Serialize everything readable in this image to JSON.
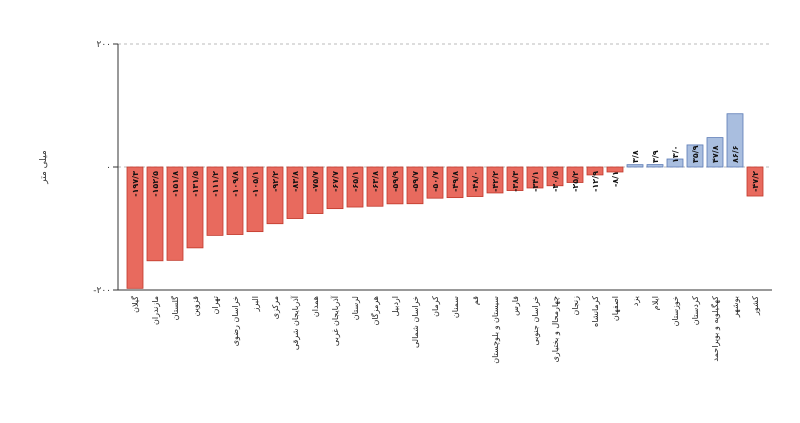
{
  "chart_data": {
    "type": "bar",
    "title": "",
    "xlabel": "",
    "ylabel": "میلی متر",
    "ylim": [
      -200,
      200
    ],
    "y_ticks": [
      {
        "value": 200,
        "label": "۲۰۰"
      },
      {
        "value": 0,
        "label": "۰"
      },
      {
        "value": -200,
        "label": "-۲۰۰"
      }
    ],
    "grid": {
      "horizontal_dashed": true
    },
    "negative_color": "#e86a5e",
    "negative_border": "#c0392b",
    "positive_color": "#a9bedf",
    "positive_border": "#5a7ab5",
    "categories": [
      "گیلان",
      "مازندران",
      "گلستان",
      "قزوین",
      "تهران",
      "خراسان رضوی",
      "البرز",
      "مرکزی",
      "آذربایجان شرقی",
      "همدان",
      "آذربایجان غربی",
      "لرستان",
      "هرمزگان",
      "اردبیل",
      "خراسان شمالی",
      "کرمان",
      "سمنان",
      "قم",
      "سیستان و بلوچستان",
      "فارس",
      "خراسان جنوبی",
      "چهارمحال و بختیاری",
      "زنجان",
      "کرمانشاه",
      "اصفهان",
      "یزد",
      "ایلام",
      "خوزستان",
      "کردستان",
      "کهگیلویه و بویراحمد",
      "بوشهر",
      "کشور"
    ],
    "values": [
      -197.3,
      -152.5,
      -151.8,
      -131.5,
      -111.2,
      -109.8,
      -105.1,
      -92.2,
      -83.8,
      -75.7,
      -67.7,
      -65.1,
      -63.8,
      -59.9,
      -59.7,
      -50.7,
      -49.8,
      -48.0,
      -42.2,
      -38.3,
      -34.1,
      -30.5,
      -25.2,
      -12.9,
      -8.1,
      3.8,
      3.9,
      13.0,
      35.9,
      47.8,
      86.6,
      -47.2
    ],
    "value_labels": [
      "-۱۹۷/۳",
      "-۱۵۲/۵",
      "-۱۵۱/۸",
      "-۱۳۱/۵",
      "-۱۱۱/۲",
      "-۱۰۹/۸",
      "-۱۰۵/۱",
      "-۹۲/۲",
      "-۸۳/۸",
      "-۷۵/۷",
      "-۶۷/۷",
      "-۶۵/۱",
      "-۶۳/۸",
      "-۵۹/۹",
      "-۵۹/۷",
      "-۵۰/۷",
      "-۴۹/۸",
      "-۴۸/۰",
      "-۴۲/۲",
      "-۳۸/۳",
      "-۳۴/۱",
      "-۳۰/۵",
      "-۲۵/۲",
      "-۱۲/۹",
      "-۸/۱",
      "۳/۸",
      "۳/۹",
      "۱۳/۰",
      "۳۵/۹",
      "۴۷/۸",
      "۸۶/۶",
      "-۴۷/۲"
    ]
  }
}
